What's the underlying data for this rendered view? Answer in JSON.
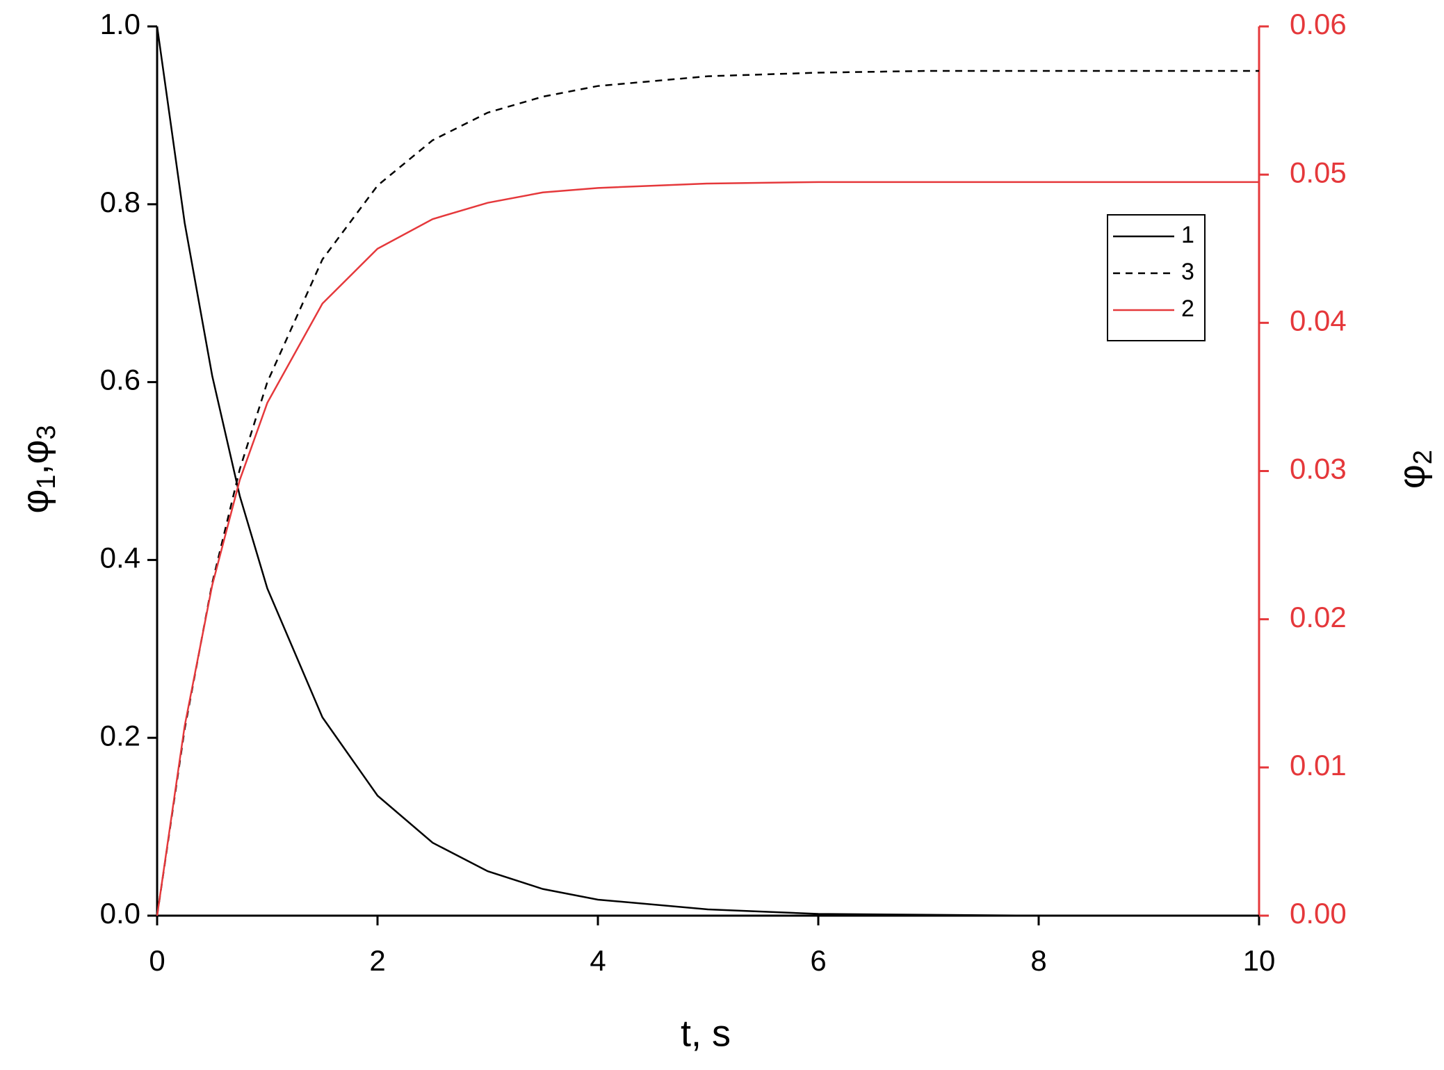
{
  "chart_data": {
    "type": "line",
    "x": [
      0,
      0.25,
      0.5,
      0.75,
      1,
      1.5,
      2,
      2.5,
      3,
      3.5,
      4,
      5,
      6,
      7,
      8,
      9,
      10
    ],
    "series": [
      {
        "name": "1",
        "color": "#000000",
        "dash": "solid",
        "axis": "y",
        "values": [
          1,
          0.779,
          0.607,
          0.472,
          0.368,
          0.223,
          0.135,
          0.082,
          0.05,
          0.03,
          0.018,
          0.007,
          0.002,
          0.001,
          0,
          0,
          0
        ]
      },
      {
        "name": "3",
        "color": "#000000",
        "dash": "dashed",
        "axis": "y",
        "values": [
          0,
          0.21,
          0.374,
          0.502,
          0.6,
          0.738,
          0.821,
          0.872,
          0.903,
          0.921,
          0.933,
          0.944,
          0.948,
          0.95,
          0.95,
          0.95,
          0.95
        ]
      },
      {
        "name": "2",
        "color": "#e5383b",
        "dash": "solid",
        "axis": "y2",
        "values": [
          0,
          0.0128,
          0.0223,
          0.0294,
          0.0346,
          0.0413,
          0.045,
          0.047,
          0.0481,
          0.0488,
          0.0491,
          0.0494,
          0.0495,
          0.0495,
          0.0495,
          0.0495,
          0.0495
        ]
      }
    ],
    "xlabel": "t, s",
    "ylabel": [
      "φ",
      "1",
      ",φ",
      "3"
    ],
    "y2label": [
      "φ",
      "2"
    ],
    "xlim": [
      0,
      10
    ],
    "xticks": [
      0,
      2,
      4,
      6,
      8,
      10
    ],
    "ylim": [
      0,
      1
    ],
    "yticks": [
      {
        "value": 0,
        "label": "0.0"
      },
      0.2,
      0.4,
      0.6,
      0.8,
      {
        "value": 1,
        "label": "1.0"
      }
    ],
    "y2lim": [
      0,
      0.06
    ],
    "y2ticks": [
      {
        "value": 0,
        "label": "0.00"
      },
      {
        "value": 0.01,
        "label": "0.01"
      },
      {
        "value": 0.02,
        "label": "0.02"
      },
      {
        "value": 0.03,
        "label": "0.03"
      },
      {
        "value": 0.04,
        "label": "0.04"
      },
      {
        "value": 0.05,
        "label": "0.05"
      },
      {
        "value": 0.06,
        "label": "0.06"
      }
    ],
    "y2color": "#e5383b",
    "legend": "upper right"
  }
}
